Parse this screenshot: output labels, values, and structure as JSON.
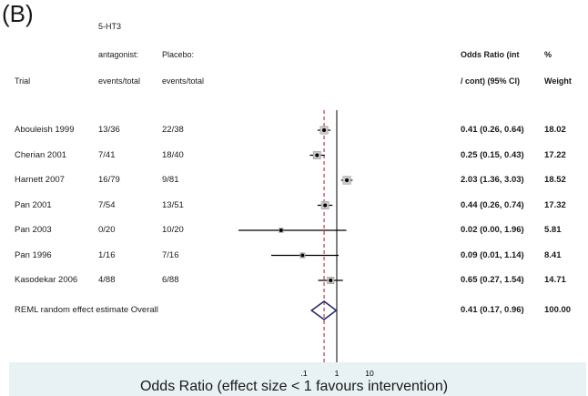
{
  "panel_label": "(B)",
  "headers": {
    "group1_line1": "5-HT3",
    "group1_line2": "antagonist:",
    "group1_line3": "events/total",
    "group2_line1": "Placebo:",
    "group2_line2": "events/total",
    "trial": "Trial",
    "or_line1": "Odds Ratio (int",
    "or_line2": "/ cont) (95% CI)",
    "w_line1": "%",
    "w_line2": "Weight"
  },
  "axis_title": "Odds Ratio (effect size < 1 favours intervention)",
  "colors": {
    "footer": "#e8f1f3",
    "reference": "#b2182b",
    "diamond": "#2b2b6b"
  },
  "chart_data": {
    "type": "forest",
    "scale": "log",
    "x_ticks": [
      ".1",
      "1",
      "10"
    ],
    "reference_line": 1,
    "pooled_line": 0.41,
    "studies": [
      {
        "trial": "Abouleish 1999",
        "antagonist": "13/36",
        "placebo": "22/38",
        "or": 0.41,
        "lo": 0.26,
        "hi": 0.64,
        "ci_text": "0.41 (0.26, 0.64)",
        "weight": 18.02,
        "weight_text": "18.02"
      },
      {
        "trial": "Cherian 2001",
        "antagonist": "7/41",
        "placebo": "18/40",
        "or": 0.25,
        "lo": 0.15,
        "hi": 0.43,
        "ci_text": "0.25 (0.15, 0.43)",
        "weight": 17.22,
        "weight_text": "17.22"
      },
      {
        "trial": "Harnett 2007",
        "antagonist": "16/79",
        "placebo": "9/81",
        "or": 2.03,
        "lo": 1.36,
        "hi": 3.03,
        "ci_text": "2.03 (1.36, 3.03)",
        "weight": 18.52,
        "weight_text": "18.52"
      },
      {
        "trial": "Pan 2001",
        "antagonist": "7/54",
        "placebo": "13/51",
        "or": 0.44,
        "lo": 0.26,
        "hi": 0.74,
        "ci_text": "0.44 (0.26, 0.74)",
        "weight": 17.32,
        "weight_text": "17.32"
      },
      {
        "trial": "Pan 2003",
        "antagonist": "0/20",
        "placebo": "10/20",
        "or": 0.02,
        "lo": 0.0,
        "hi": 1.96,
        "ci_text": "0.02 (0.00, 1.96)",
        "weight": 5.81,
        "weight_text": "5.81"
      },
      {
        "trial": "Pan 1996",
        "antagonist": "1/16",
        "placebo": "7/16",
        "or": 0.09,
        "lo": 0.01,
        "hi": 1.14,
        "ci_text": "0.09 (0.01, 1.14)",
        "weight": 8.41,
        "weight_text": "8.41"
      },
      {
        "trial": "Kasodekar 2006",
        "antagonist": "4/88",
        "placebo": "6/88",
        "or": 0.65,
        "lo": 0.27,
        "hi": 1.54,
        "ci_text": "0.65 (0.27, 1.54)",
        "weight": 14.71,
        "weight_text": "14.71"
      }
    ],
    "overall": {
      "label": "REML random effect estimate Overall",
      "or": 0.41,
      "lo": 0.17,
      "hi": 0.96,
      "ci_text": "0.41 (0.17, 0.96)",
      "weight_text": "100.00"
    }
  }
}
